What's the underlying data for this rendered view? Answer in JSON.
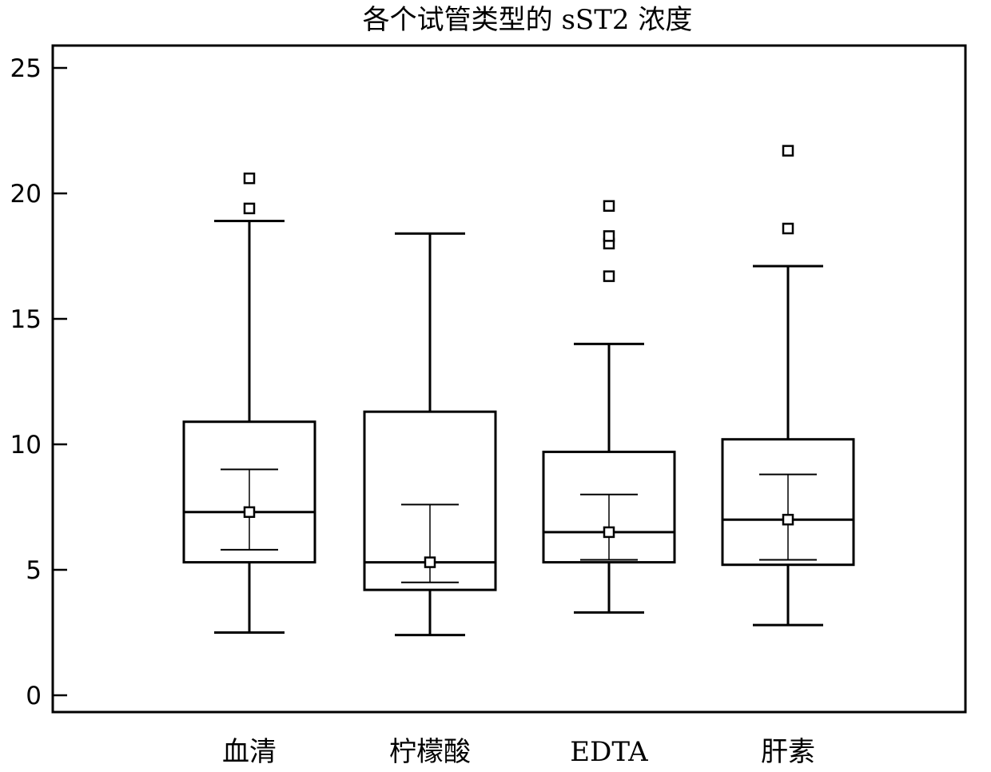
{
  "chart_data": {
    "type": "box",
    "title": "各个试管类型的 sST2 浓度",
    "xlabel": "",
    "ylabel": "",
    "ylim": [
      0,
      25
    ],
    "yticks": [
      0,
      5,
      10,
      15,
      20,
      25
    ],
    "grid": false,
    "categories": [
      "血清",
      "柠檬酸",
      "EDTA",
      "肝素"
    ],
    "boxes": [
      {
        "category": "血清",
        "whisker_low": 2.5,
        "q1": 5.3,
        "median": 7.3,
        "q3": 10.9,
        "whisker_high": 18.9,
        "mean": 7.3,
        "ci_low": 5.8,
        "ci_high": 9.0,
        "outliers": [
          19.4,
          20.6
        ]
      },
      {
        "category": "柠檬酸",
        "whisker_low": 2.4,
        "q1": 4.2,
        "median": 5.3,
        "q3": 11.3,
        "whisker_high": 18.4,
        "mean": 5.3,
        "ci_low": 4.5,
        "ci_high": 7.6,
        "outliers": []
      },
      {
        "category": "EDTA",
        "whisker_low": 3.3,
        "q1": 5.3,
        "median": 6.5,
        "q3": 9.7,
        "whisker_high": 14.0,
        "mean": 6.5,
        "ci_low": 5.4,
        "ci_high": 8.0,
        "outliers": [
          16.7,
          18.0,
          18.3,
          19.5
        ]
      },
      {
        "category": "肝素",
        "whisker_low": 2.8,
        "q1": 5.2,
        "median": 7.0,
        "q3": 10.2,
        "whisker_high": 17.1,
        "mean": 7.0,
        "ci_low": 5.4,
        "ci_high": 8.8,
        "outliers": [
          18.6,
          21.7
        ]
      }
    ]
  }
}
